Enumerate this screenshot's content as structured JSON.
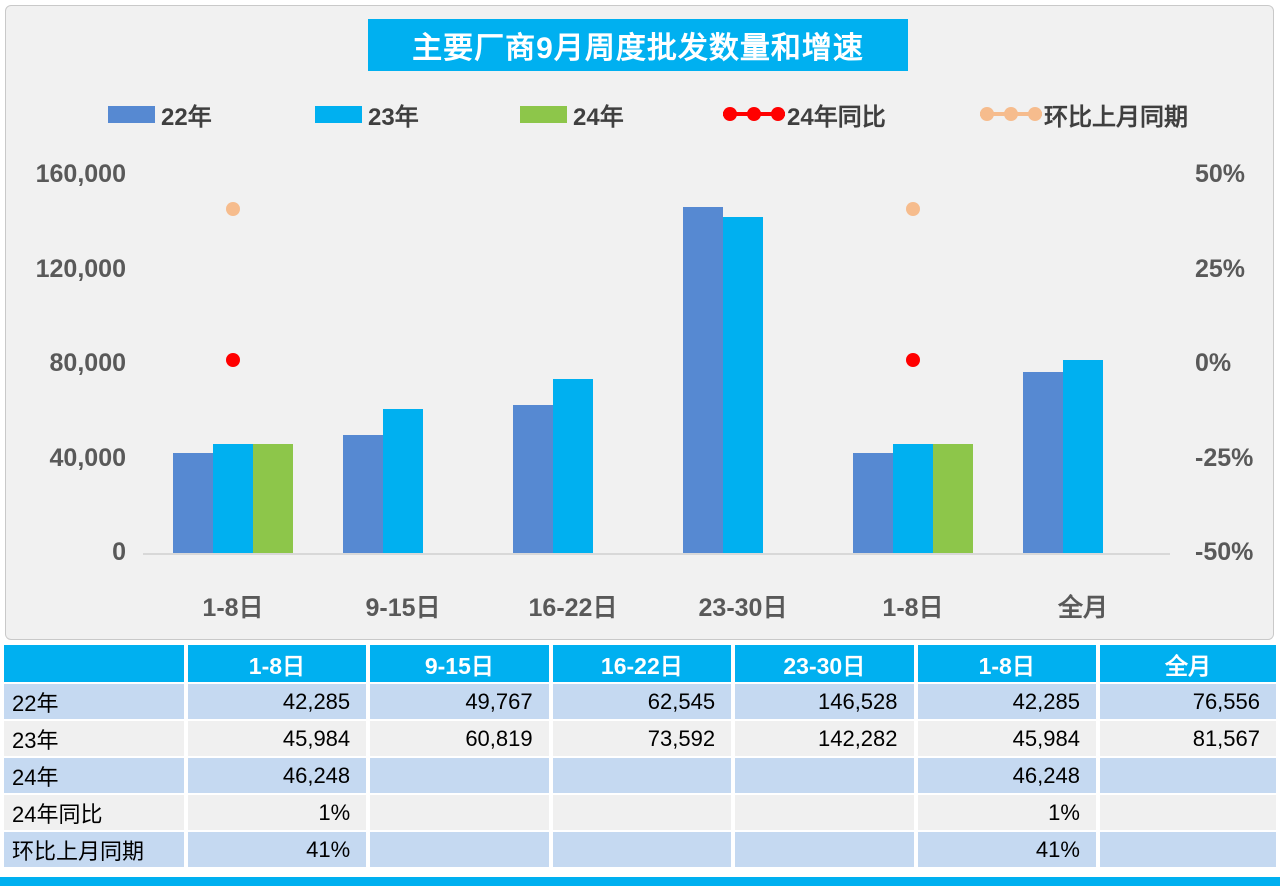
{
  "title": "主要厂商9月周度批发数量和增速",
  "colors": {
    "accent_cyan": "#00B0F0",
    "bar_blue": "#5689D2",
    "bar_cyan": "#00B0F0",
    "bar_green": "#8DC64A",
    "dot_red": "#FF0000",
    "dot_orange": "#F6BC8D",
    "panel_bg": "#F1F1F1",
    "axis_text": "#595959",
    "table_row_blue": "#C5D9F1",
    "table_row_gray": "#F0F0F0"
  },
  "legend": [
    {
      "label": "22年",
      "kind": "bar",
      "color": "#5689D2"
    },
    {
      "label": "23年",
      "kind": "bar",
      "color": "#00B0F0"
    },
    {
      "label": "24年",
      "kind": "bar",
      "color": "#8DC64A"
    },
    {
      "label": "24年同比",
      "kind": "point",
      "color": "#FF0000"
    },
    {
      "label": "环比上月同期",
      "kind": "point",
      "color": "#F6BC8D"
    }
  ],
  "chart_data": {
    "type": "bar",
    "title": "主要厂商9月周度批发数量和增速",
    "categories": [
      "1-8日",
      "9-15日",
      "16-22日",
      "23-30日",
      "1-8日",
      "全月"
    ],
    "series": [
      {
        "name": "22年",
        "kind": "bar",
        "axis": "left",
        "color": "#5689D2",
        "values": [
          42285,
          49767,
          62545,
          146528,
          42285,
          76556
        ]
      },
      {
        "name": "23年",
        "kind": "bar",
        "axis": "left",
        "color": "#00B0F0",
        "values": [
          45984,
          60819,
          73592,
          142282,
          45984,
          81567
        ]
      },
      {
        "name": "24年",
        "kind": "bar",
        "axis": "left",
        "color": "#8DC64A",
        "values": [
          46248,
          null,
          null,
          null,
          46248,
          null
        ]
      },
      {
        "name": "24年同比",
        "kind": "point",
        "axis": "right",
        "color": "#FF0000",
        "values": [
          0.01,
          null,
          null,
          null,
          0.01,
          null
        ]
      },
      {
        "name": "环比上月同期",
        "kind": "point",
        "axis": "right",
        "color": "#F6BC8D",
        "values": [
          0.41,
          null,
          null,
          null,
          0.41,
          null
        ]
      }
    ],
    "left_axis": {
      "min": 0,
      "max": 160000,
      "tick_values": [
        0,
        40000,
        80000,
        120000,
        160000
      ],
      "tick_labels": [
        "0",
        "40,000",
        "80,000",
        "120,000",
        "160,000"
      ]
    },
    "right_axis": {
      "min": -0.5,
      "max": 0.5,
      "tick_values": [
        -0.5,
        -0.25,
        0,
        0.25,
        0.5
      ],
      "tick_labels": [
        "-50%",
        "-25%",
        "0%",
        "25%",
        "50%"
      ]
    },
    "grid": false,
    "legend_position": "top"
  },
  "table": {
    "header": [
      "",
      "1-8日",
      "9-15日",
      "16-22日",
      "23-30日",
      "1-8日",
      "全月"
    ],
    "rows": [
      {
        "label": "22年",
        "cells": [
          "42,285",
          "49,767",
          "62,545",
          "146,528",
          "42,285",
          "76,556"
        ]
      },
      {
        "label": "23年",
        "cells": [
          "45,984",
          "60,819",
          "73,592",
          "142,282",
          "45,984",
          "81,567"
        ]
      },
      {
        "label": "24年",
        "cells": [
          "46,248",
          "",
          "",
          "",
          "46,248",
          ""
        ]
      },
      {
        "label": "24年同比",
        "cells": [
          "1%",
          "",
          "",
          "",
          "1%",
          ""
        ]
      },
      {
        "label": "环比上月同期",
        "cells": [
          "41%",
          "",
          "",
          "",
          "41%",
          ""
        ]
      }
    ]
  }
}
